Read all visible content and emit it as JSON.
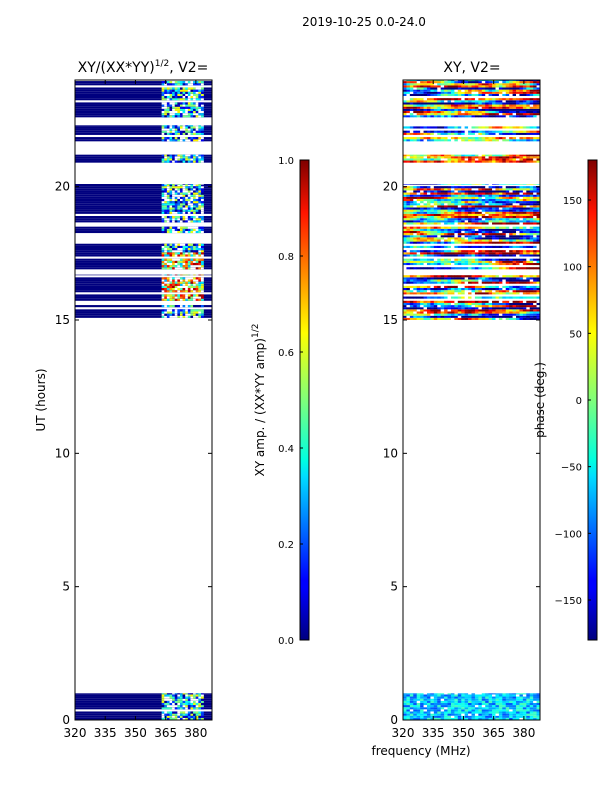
{
  "figure": {
    "suptitle": "2019-10-25 0.0-24.0",
    "xlabel_shared": "frequency (MHz)"
  },
  "chart_data": [
    {
      "type": "heatmap",
      "title_main": "XY/(XX*YY)",
      "title_sup": "1/2",
      "title_tail": ", V2=",
      "ylabel": "UT (hours)",
      "x_ticks": [
        "320",
        "335",
        "350",
        "365",
        "380"
      ],
      "x_tick_values": [
        320,
        335,
        350,
        365,
        380
      ],
      "xlim": [
        320,
        388
      ],
      "y_ticks": [
        "0",
        "5",
        "10",
        "15",
        "20"
      ],
      "y_tick_values": [
        0,
        5,
        10,
        15,
        20
      ],
      "ylim": [
        0,
        24
      ],
      "colorbar": {
        "label_main": "XY amp. / (XX*YY amp)",
        "label_sup": "1/2",
        "ticks": [
          "0.0",
          "0.2",
          "0.4",
          "0.6",
          "0.8",
          "1.0"
        ],
        "tick_values": [
          0.0,
          0.2,
          0.4,
          0.6,
          0.8,
          1.0
        ],
        "range": [
          0.0,
          1.0
        ]
      },
      "data_bands_hours": [
        [
          0.0,
          1.0
        ],
        [
          15.0,
          16.7
        ],
        [
          16.9,
          20.1
        ],
        [
          20.9,
          21.2
        ],
        [
          21.7,
          22.3
        ],
        [
          22.6,
          24.0
        ]
      ],
      "dominant_value": 0.0,
      "active_channels_mhz": [
        363,
        383
      ]
    },
    {
      "type": "heatmap",
      "title_main": "XY, V2=",
      "x_ticks": [
        "320",
        "335",
        "350",
        "365",
        "380"
      ],
      "x_tick_values": [
        320,
        335,
        350,
        365,
        380
      ],
      "xlim": [
        320,
        388
      ],
      "y_ticks": [
        "0",
        "5",
        "10",
        "15",
        "20"
      ],
      "y_tick_values": [
        0,
        5,
        10,
        15,
        20
      ],
      "ylim": [
        0,
        24
      ],
      "colorbar": {
        "label_main": "phase (deg.)",
        "ticks": [
          "−150",
          "−100",
          "−50",
          "0",
          "50",
          "100",
          "150"
        ],
        "tick_values": [
          -150,
          -100,
          -50,
          0,
          50,
          100,
          150
        ],
        "range": [
          -180,
          180
        ]
      },
      "data_bands_hours": [
        [
          0.0,
          1.0
        ],
        [
          15.0,
          16.7
        ],
        [
          16.9,
          20.1
        ],
        [
          20.9,
          21.2
        ],
        [
          21.7,
          22.3
        ],
        [
          22.6,
          24.0
        ]
      ]
    }
  ],
  "colors": {
    "axes": "#000000",
    "background": "#ffffff",
    "jet_low": "#00007f",
    "jet_high": "#7f0000"
  }
}
